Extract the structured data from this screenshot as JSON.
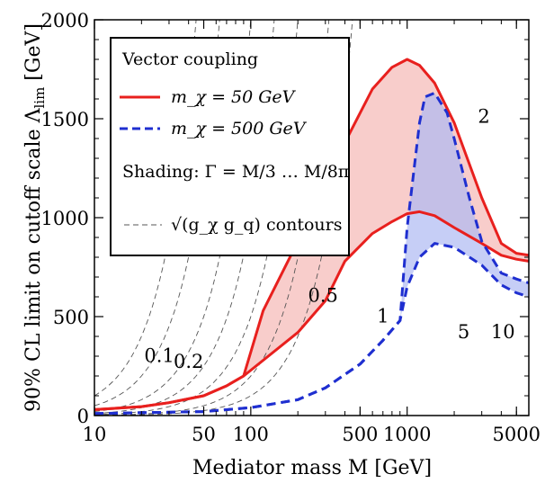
{
  "chart_data": {
    "type": "line",
    "xlabel": "Mediator mass M [GeV]",
    "ylabel": "90% CL limit on cutoff scale Λ",
    "ylabel_sub": "lim",
    "ylabel_unit": " [GeV]",
    "x_scale": "log",
    "xlim": [
      10,
      6000
    ],
    "ylim": [
      0,
      2000
    ],
    "x_ticks": [
      {
        "value": 10,
        "label": "10"
      },
      {
        "value": 50,
        "label": "50"
      },
      {
        "value": 100,
        "label": "100"
      },
      {
        "value": 500,
        "label": "500"
      },
      {
        "value": 1000,
        "label": "1000"
      },
      {
        "value": 5000,
        "label": "5000"
      }
    ],
    "y_ticks": [
      {
        "value": 0,
        "label": "0"
      },
      {
        "value": 500,
        "label": "500"
      },
      {
        "value": 1000,
        "label": "1000"
      },
      {
        "value": 1500,
        "label": "1500"
      },
      {
        "value": 2000,
        "label": "2000"
      }
    ],
    "legend": {
      "title": "Vector coupling",
      "placement": "top-left",
      "entries": [
        {
          "label": "m_χ = 50 GeV",
          "color": "#e8201e",
          "style": "solid"
        },
        {
          "label": "m_χ = 500 GeV",
          "color": "#1f2fd0",
          "style": "dashed"
        }
      ],
      "shading_label": "Shading: Γ = M/3 … M/8π",
      "contour_label": "√(g_χ g_q) contours"
    },
    "series": [
      {
        "name": "m_χ = 50 GeV",
        "color": "#e8201e",
        "fill": "#f7c4c2",
        "upper": [
          [
            10,
            30
          ],
          [
            20,
            45
          ],
          [
            30,
            65
          ],
          [
            50,
            100
          ],
          [
            70,
            150
          ],
          [
            90,
            200
          ],
          [
            120,
            530
          ],
          [
            200,
            880
          ],
          [
            300,
            1120
          ],
          [
            400,
            1380
          ],
          [
            600,
            1650
          ],
          [
            800,
            1760
          ],
          [
            1000,
            1800
          ],
          [
            1200,
            1770
          ],
          [
            1500,
            1680
          ],
          [
            2000,
            1480
          ],
          [
            3000,
            1100
          ],
          [
            4000,
            870
          ],
          [
            5000,
            820
          ],
          [
            6000,
            810
          ]
        ],
        "lower": [
          [
            10,
            30
          ],
          [
            20,
            45
          ],
          [
            30,
            65
          ],
          [
            50,
            100
          ],
          [
            70,
            150
          ],
          [
            90,
            200
          ],
          [
            200,
            420
          ],
          [
            300,
            580
          ],
          [
            400,
            780
          ],
          [
            600,
            920
          ],
          [
            800,
            980
          ],
          [
            1000,
            1020
          ],
          [
            1200,
            1030
          ],
          [
            1500,
            1010
          ],
          [
            2000,
            950
          ],
          [
            3000,
            870
          ],
          [
            4000,
            810
          ],
          [
            5000,
            790
          ],
          [
            6000,
            780
          ]
        ]
      },
      {
        "name": "m_χ = 500 GeV",
        "color": "#1f2fd0",
        "fill": "#aeb9f2",
        "upper": [
          [
            10,
            10
          ],
          [
            50,
            20
          ],
          [
            100,
            40
          ],
          [
            200,
            80
          ],
          [
            300,
            140
          ],
          [
            500,
            260
          ],
          [
            700,
            380
          ],
          [
            900,
            480
          ],
          [
            1000,
            950
          ],
          [
            1200,
            1480
          ],
          [
            1300,
            1610
          ],
          [
            1500,
            1630
          ],
          [
            1800,
            1530
          ],
          [
            2000,
            1400
          ],
          [
            2500,
            1100
          ],
          [
            3000,
            880
          ],
          [
            4000,
            720
          ],
          [
            5000,
            690
          ],
          [
            6000,
            670
          ]
        ],
        "lower": [
          [
            10,
            10
          ],
          [
            50,
            20
          ],
          [
            100,
            40
          ],
          [
            200,
            80
          ],
          [
            300,
            140
          ],
          [
            500,
            260
          ],
          [
            700,
            380
          ],
          [
            900,
            480
          ],
          [
            1000,
            650
          ],
          [
            1200,
            800
          ],
          [
            1500,
            870
          ],
          [
            2000,
            850
          ],
          [
            3000,
            760
          ],
          [
            4000,
            660
          ],
          [
            5000,
            620
          ],
          [
            6000,
            600
          ]
        ]
      }
    ],
    "contours": [
      {
        "label": "0.1",
        "coef": 1.0,
        "label_x": 26,
        "label_y": 270
      },
      {
        "label": "0.2",
        "coef": 0.5,
        "label_x": 40,
        "label_y": 240
      },
      {
        "label": "0.5",
        "coef": 0.2,
        "label_x": 290,
        "label_y": 575
      },
      {
        "label": "1",
        "coef": 0.1,
        "label_x": 700,
        "label_y": 470
      },
      {
        "label": "2",
        "coef": 0.05,
        "label_x": 3100,
        "label_y": 1480
      },
      {
        "label": "5",
        "coef": 0.02,
        "label_x": 2300,
        "label_y": 390
      },
      {
        "label": "10",
        "coef": 0.01,
        "label_x": 4100,
        "label_y": 390
      }
    ]
  }
}
